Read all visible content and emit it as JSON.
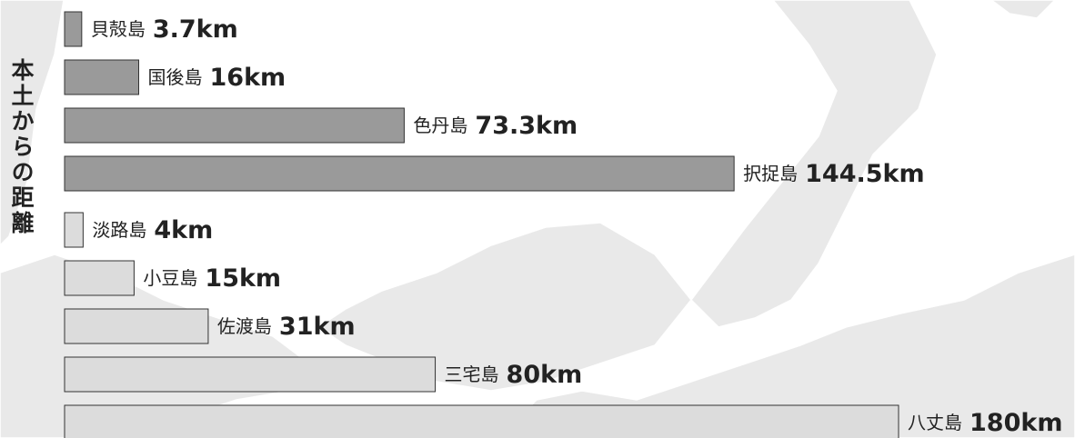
{
  "chart_data": {
    "type": "bar",
    "orientation": "horizontal",
    "title": "本土からの距離",
    "categories": [
      "貝殻島",
      "国後島",
      "色丹島",
      "択捉島",
      "淡路島",
      "小豆島",
      "佐渡島",
      "三宅島",
      "八丈島"
    ],
    "values": [
      3.7,
      16,
      73.3,
      144.5,
      4,
      15,
      31,
      80,
      180
    ],
    "value_labels": [
      "3.7km",
      "16km",
      "73.3km",
      "144.5km",
      "4km",
      "15km",
      "31km",
      "80km",
      "180km"
    ],
    "colors": [
      "#9a9a9a",
      "#9a9a9a",
      "#9a9a9a",
      "#9a9a9a",
      "#dcdcdc",
      "#dcdcdc",
      "#dcdcdc",
      "#dcdcdc",
      "#dcdcdc"
    ],
    "xlim": [
      0,
      180
    ]
  }
}
